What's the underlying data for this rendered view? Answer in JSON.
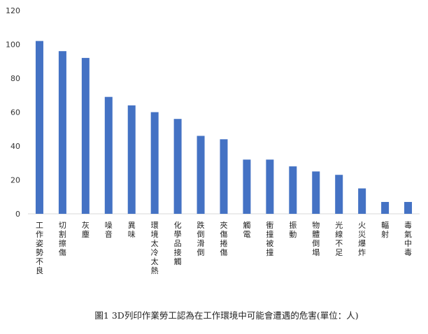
{
  "chart_data": {
    "type": "bar",
    "categories": [
      "工作姿勢不良",
      "切割擦傷",
      "灰塵",
      "噪音",
      "異味",
      "環境太冷太熱",
      "化學品接觸",
      "跌倒滑倒",
      "夾傷捲傷",
      "觸電",
      "衝撞被撞",
      "振動",
      "物體倒塌",
      "光線不足",
      "火災爆炸",
      "輻射",
      "毒氣中毒"
    ],
    "values": [
      102,
      96,
      92,
      69,
      64,
      60,
      56,
      46,
      44,
      32,
      32,
      28,
      25,
      23,
      15,
      7,
      7
    ],
    "ylim": [
      0,
      120
    ],
    "yticks": [
      0,
      20,
      40,
      60,
      80,
      100,
      120
    ],
    "grid": false,
    "bar_color": "#4472C4",
    "caption": "圖1 3D列印作業勞工認為在工作環境中可能會遭遇的危害(單位：人)"
  }
}
